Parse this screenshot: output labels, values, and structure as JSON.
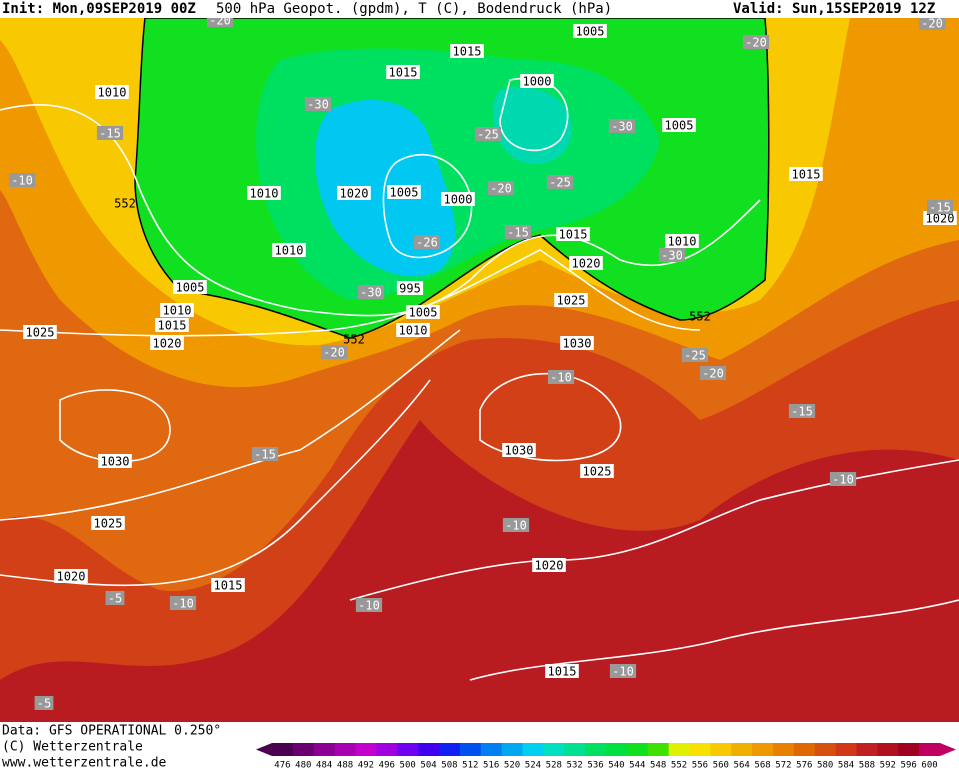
{
  "header": {
    "init": "Init: Mon,09SEP2019 00Z",
    "title": "500 hPa Geopot. (gpdm), T (C), Bodendruck (hPa)",
    "valid": "Valid: Sun,15SEP2019 12Z"
  },
  "footer": {
    "data": "Data: GFS OPERATIONAL 0.250°",
    "copyright": "(C) Wetterzentrale",
    "url": "www.wetterzentrale.de"
  },
  "map": {
    "pressure_labels": [
      "1010",
      "1015",
      "1005",
      "1015",
      "1000",
      "1005",
      "1010",
      "1020",
      "1005",
      "1000",
      "1015",
      "1010",
      "1010",
      "1020",
      "1015",
      "1020",
      "995",
      "1005",
      "1010",
      "1015",
      "1005",
      "1025",
      "1025",
      "1020",
      "1010",
      "1030",
      "1030",
      "1030",
      "1025",
      "1025",
      "1020",
      "1020",
      "1015",
      "1015"
    ],
    "temperature_labels": [
      "-20",
      "-20",
      "-20",
      "-30",
      "-15",
      "-25",
      "-30",
      "-10",
      "-20",
      "-25",
      "-15",
      "-30",
      "-26",
      "-30",
      "-20",
      "-25",
      "-20",
      "-10",
      "-15",
      "-15",
      "-10",
      "-10",
      "-5",
      "-10",
      "-10",
      "-10",
      "-5",
      "-15"
    ],
    "height_labels": [
      "552",
      "552",
      "552"
    ]
  },
  "legend": {
    "values": [
      476,
      480,
      484,
      488,
      492,
      496,
      500,
      504,
      508,
      512,
      516,
      520,
      524,
      528,
      532,
      536,
      540,
      544,
      548,
      552,
      556,
      560,
      564,
      568,
      572,
      576,
      580,
      584,
      588,
      592,
      596,
      600
    ],
    "colors": [
      "#4b0050",
      "#6a0070",
      "#8a0090",
      "#a800b0",
      "#c400cc",
      "#a000e0",
      "#7000f0",
      "#4000f0",
      "#1020f0",
      "#0050f0",
      "#0080f0",
      "#00a8f0",
      "#00d0f0",
      "#00e0c0",
      "#00e090",
      "#00e060",
      "#00e040",
      "#10e020",
      "#40e000",
      "#e0f000",
      "#f8e000",
      "#f8c800",
      "#f0b000",
      "#f09800",
      "#e88000",
      "#e06800",
      "#d85010",
      "#d03818",
      "#c02020",
      "#b01020",
      "#a00020",
      "#c00060"
    ]
  }
}
